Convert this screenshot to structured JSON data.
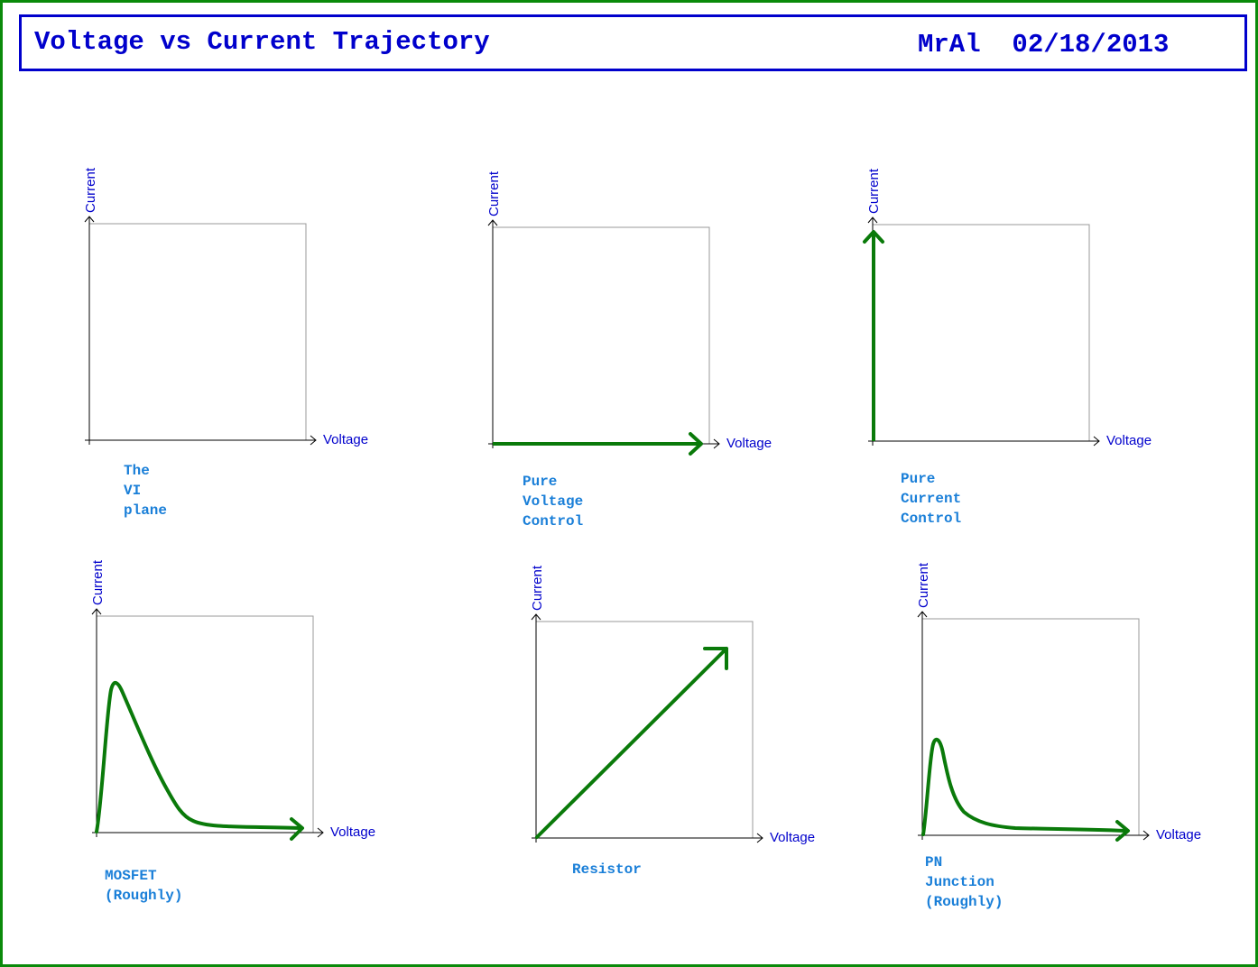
{
  "header": {
    "title": "Voltage vs Current Trajectory",
    "author_date": "MrAl  02/18/2013"
  },
  "panels": [
    {
      "id": "vi-plane",
      "y_axis_label": "Current",
      "x_axis_label": "Voltage",
      "caption": "The VI plane"
    },
    {
      "id": "pure-voltage",
      "y_axis_label": "Current",
      "x_axis_label": "Voltage",
      "caption": "Pure Voltage\nControl"
    },
    {
      "id": "pure-current",
      "y_axis_label": "Current",
      "x_axis_label": "Voltage",
      "caption": "Pure Current\nControl"
    },
    {
      "id": "mosfet",
      "y_axis_label": "Current",
      "x_axis_label": "Voltage",
      "caption": "MOSFET (Roughly)"
    },
    {
      "id": "resistor",
      "y_axis_label": "Current",
      "x_axis_label": "Voltage",
      "caption": "Resistor"
    },
    {
      "id": "pn-junction",
      "y_axis_label": "Current",
      "x_axis_label": "Voltage",
      "caption": "PN Junction (Roughly)"
    }
  ],
  "colors": {
    "frame": "#0a8a0a",
    "title": "#0000cc",
    "axis_label": "#0000cc",
    "caption": "#1a7fd8",
    "trajectory": "#0a7a0a",
    "axes": "#000000",
    "box": "#999999"
  }
}
